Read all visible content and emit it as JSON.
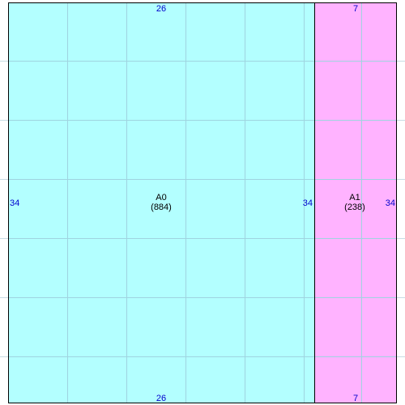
{
  "colors": {
    "region_a0_fill": "#b3ffff",
    "region_a1_fill": "#ffb3ff",
    "grid_line": "#9fd4e0",
    "outline": "#000000",
    "dimension_text": "#0000cc"
  },
  "regions": [
    {
      "name": "A0",
      "area": "(884)",
      "width_label": "26",
      "height_label": "34",
      "right_height_label": "34"
    },
    {
      "name": "A1",
      "area": "(238)",
      "width_label": "7",
      "right_height_label": "34"
    }
  ]
}
